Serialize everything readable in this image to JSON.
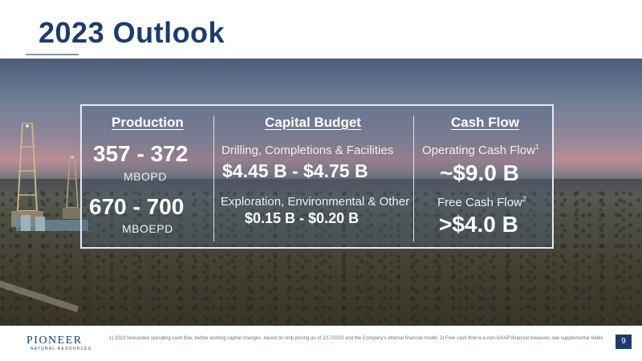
{
  "slide": {
    "title": "2023 Outlook",
    "page_number": "9"
  },
  "production": {
    "header": "Production",
    "oil_range": "357 - 372",
    "oil_unit": "MBOPD",
    "total_range": "670 - 700",
    "total_unit": "MBOEPD"
  },
  "capital_budget": {
    "header": "Capital Budget",
    "dcf_label": "Drilling, Completions & Facilities",
    "dcf_value": "$4.45 B - $4.75 B",
    "other_label": "Exploration, Environmental & Other",
    "other_value": "$0.15 B - $0.20 B"
  },
  "cash_flow": {
    "header": "Cash Flow",
    "ocf_label": "Operating Cash Flow",
    "ocf_sup": "1",
    "ocf_value": "~$9.0 B",
    "fcf_label": "Free Cash Flow",
    "fcf_sup": "2",
    "fcf_value": ">$4.0 B"
  },
  "footer": {
    "logo_main": "PIONEER",
    "logo_sub": "NATURAL RESOURCES",
    "footnote": "1) 2023 forecasted operating cash flow, before working capital changes, based on strip pricing as of 2/17/2023 and the Company's internal financial model. 2) Free cash flow is a non-GAAP financial measure; see supplemental slides."
  },
  "colors": {
    "brand_navy": "#1b3d6d",
    "panel_border": "#e6e9ef"
  }
}
